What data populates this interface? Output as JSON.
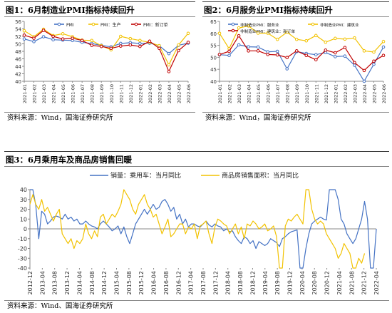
{
  "charts": [
    {
      "title": "图1：6月制造业PMI指标持续回升",
      "source": "资料来源：Wind，国海证券研究所"
    },
    {
      "title": "图2：6月服务业PMI指标持续回升",
      "source": "资料来源：Wind，国海证券研究所"
    },
    {
      "title": "图3：6月乘用车及商品房销售回暖",
      "source": "资料来源：Wind、国海证券研究所"
    }
  ],
  "chart_data": [
    {
      "type": "line",
      "title": "图1：6月制造业PMI指标持续回升",
      "ylim": [
        40,
        56
      ],
      "yticks": [
        40,
        42,
        44,
        46,
        48,
        50,
        52,
        54,
        56
      ],
      "grid": false,
      "legend": "top-center",
      "categories": [
        "2021-01",
        "2021-02",
        "2021-03",
        "2021-04",
        "2021-05",
        "2021-06",
        "2021-07",
        "2021-08",
        "2021-09",
        "2021-10",
        "2021-11",
        "2021-12",
        "2022-01",
        "2022-02",
        "2022-03",
        "2022-04",
        "2022-05",
        "2022-06"
      ],
      "series": [
        {
          "name": "PMI",
          "color": "#4472c4",
          "values": [
            51.3,
            50.6,
            51.9,
            51.1,
            51.0,
            50.9,
            50.4,
            50.1,
            49.6,
            49.2,
            50.1,
            50.3,
            50.1,
            50.2,
            49.5,
            47.4,
            49.6,
            50.2
          ]
        },
        {
          "name": "PMI：生产",
          "color": "#f2c200",
          "values": [
            53.5,
            51.9,
            53.9,
            52.2,
            52.7,
            51.9,
            51.0,
            50.9,
            49.5,
            48.4,
            52.0,
            51.4,
            50.9,
            50.4,
            49.5,
            44.4,
            49.7,
            52.8
          ]
        },
        {
          "name": "PMI：新订单",
          "color": "#c00000",
          "values": [
            52.3,
            51.5,
            53.6,
            52.0,
            51.3,
            51.5,
            50.9,
            49.6,
            49.3,
            48.8,
            49.4,
            49.7,
            49.3,
            50.7,
            48.8,
            42.6,
            48.2,
            50.4
          ]
        }
      ]
    },
    {
      "type": "line",
      "title": "图2：6月服务业PMI指标持续回升",
      "ylim": [
        40,
        65
      ],
      "yticks": [
        40,
        45,
        50,
        55,
        60,
        65
      ],
      "grid": false,
      "legend": "top",
      "categories": [
        "2021-01",
        "2021-02",
        "2021-03",
        "2021-04",
        "2021-05",
        "2021-06",
        "2021-07",
        "2021-08",
        "2021-09",
        "2021-10",
        "2021-11",
        "2021-12",
        "2022-01",
        "2022-02",
        "2022-03",
        "2022-04",
        "2022-05",
        "2022-06"
      ],
      "series": [
        {
          "name": "非制造业PMI：服务业",
          "color": "#4472c4",
          "values": [
            51.1,
            50.8,
            55.2,
            54.4,
            54.3,
            52.3,
            52.5,
            45.2,
            52.4,
            51.6,
            51.1,
            52.0,
            50.3,
            50.5,
            46.7,
            40.0,
            47.1,
            54.3
          ]
        },
        {
          "name": "非制造业PMI：建筑业",
          "color": "#f2c200",
          "values": [
            60.0,
            53.6,
            62.3,
            63.1,
            60.1,
            60.1,
            57.5,
            60.5,
            57.5,
            56.9,
            59.1,
            56.3,
            57.9,
            57.6,
            58.1,
            52.7,
            52.2,
            56.6
          ]
        },
        {
          "name": "非制造业PMI：建筑业：新订单",
          "color": "#c00000",
          "values": [
            51.2,
            52.5,
            59.0,
            52.7,
            52.7,
            51.2,
            51.0,
            49.9,
            52.7,
            50.8,
            49.0,
            53.0,
            51.9,
            54.1,
            47.8,
            44.5,
            48.4,
            50.8
          ]
        }
      ]
    },
    {
      "type": "line",
      "title": "图3：6月乘用车及商品房销售回暖",
      "ylim": [
        -40,
        40
      ],
      "yticks": [
        -40,
        -30,
        -20,
        -10,
        0,
        10,
        20,
        30,
        40
      ],
      "grid": false,
      "legend": "top",
      "x_ticks": [
        "2012-12",
        "2013-04",
        "2013-08",
        "2013-12",
        "2014-04",
        "2014-08",
        "2014-12",
        "2015-04",
        "2015-08",
        "2015-12",
        "2016-04",
        "2016-08",
        "2016-12",
        "2017-04",
        "2017-08",
        "2017-12",
        "2018-04",
        "2018-08",
        "2018-12",
        "2019-04",
        "2019-08",
        "2019-12",
        "2020-04",
        "2020-08",
        "2020-12",
        "2021-04",
        "2021-08",
        "2021-12",
        "2022-04"
      ],
      "series": [
        {
          "name": "销量：乘用车：当月同比",
          "color": "#4472c4",
          "values": [
            40,
            40,
            24,
            -10,
            18,
            15,
            5,
            8,
            12,
            13,
            12,
            10,
            15,
            10,
            12,
            8,
            10,
            5,
            5,
            8,
            5,
            3,
            2,
            0,
            5,
            8,
            5,
            2,
            -2,
            0,
            3,
            -5,
            2,
            -8,
            -15,
            -5,
            5,
            10,
            15,
            20,
            15,
            20,
            25,
            20,
            22,
            28,
            30,
            25,
            18,
            22,
            10,
            15,
            5,
            10,
            2,
            5,
            5,
            3,
            2,
            5,
            8,
            4,
            2,
            5,
            3,
            2,
            -2,
            0,
            -3,
            -2,
            -8,
            -12,
            -15,
            -8,
            -10,
            -15,
            -12,
            -20,
            -13,
            -15,
            -17,
            -15,
            -10,
            -12,
            -14,
            -18,
            -10,
            -8,
            -5,
            -3,
            -2,
            -1,
            -40,
            -40,
            -20,
            -5,
            5,
            8,
            10,
            12,
            10,
            9,
            40,
            40,
            40,
            30,
            10,
            5,
            -5,
            -10,
            -15,
            -10,
            0,
            10,
            28,
            10,
            -40,
            -40,
            0
          ]
        },
        {
          "name": "商品房销售面积：当月同比",
          "color": "#f2c200",
          "values": [
            25,
            35,
            25,
            20,
            30,
            18,
            22,
            15,
            8,
            15,
            20,
            -5,
            -10,
            -15,
            -10,
            -20,
            -12,
            -15,
            -10,
            5,
            -5,
            -10,
            -2,
            -8,
            12,
            15,
            5,
            10,
            15,
            12,
            18,
            25,
            40,
            35,
            30,
            20,
            15,
            25,
            30,
            35,
            25,
            20,
            12,
            15,
            5,
            -5,
            2,
            10,
            -8,
            -5,
            0,
            5,
            5,
            -5,
            2,
            0,
            5,
            -10,
            3,
            5,
            8,
            -5,
            -15,
            2,
            10,
            8,
            5,
            3,
            -5,
            0,
            5,
            -5,
            2,
            -10,
            5,
            3,
            8,
            5,
            0,
            2,
            5,
            -2,
            0,
            3,
            -8,
            -40,
            -40,
            3,
            10,
            8,
            12,
            15,
            10,
            5,
            40,
            40,
            20,
            10,
            5,
            8,
            5,
            -5,
            -10,
            -15,
            -20,
            -30,
            -25,
            -15,
            -20,
            -25,
            -40,
            -45,
            -30,
            -35,
            -25
          ]
        }
      ]
    }
  ]
}
